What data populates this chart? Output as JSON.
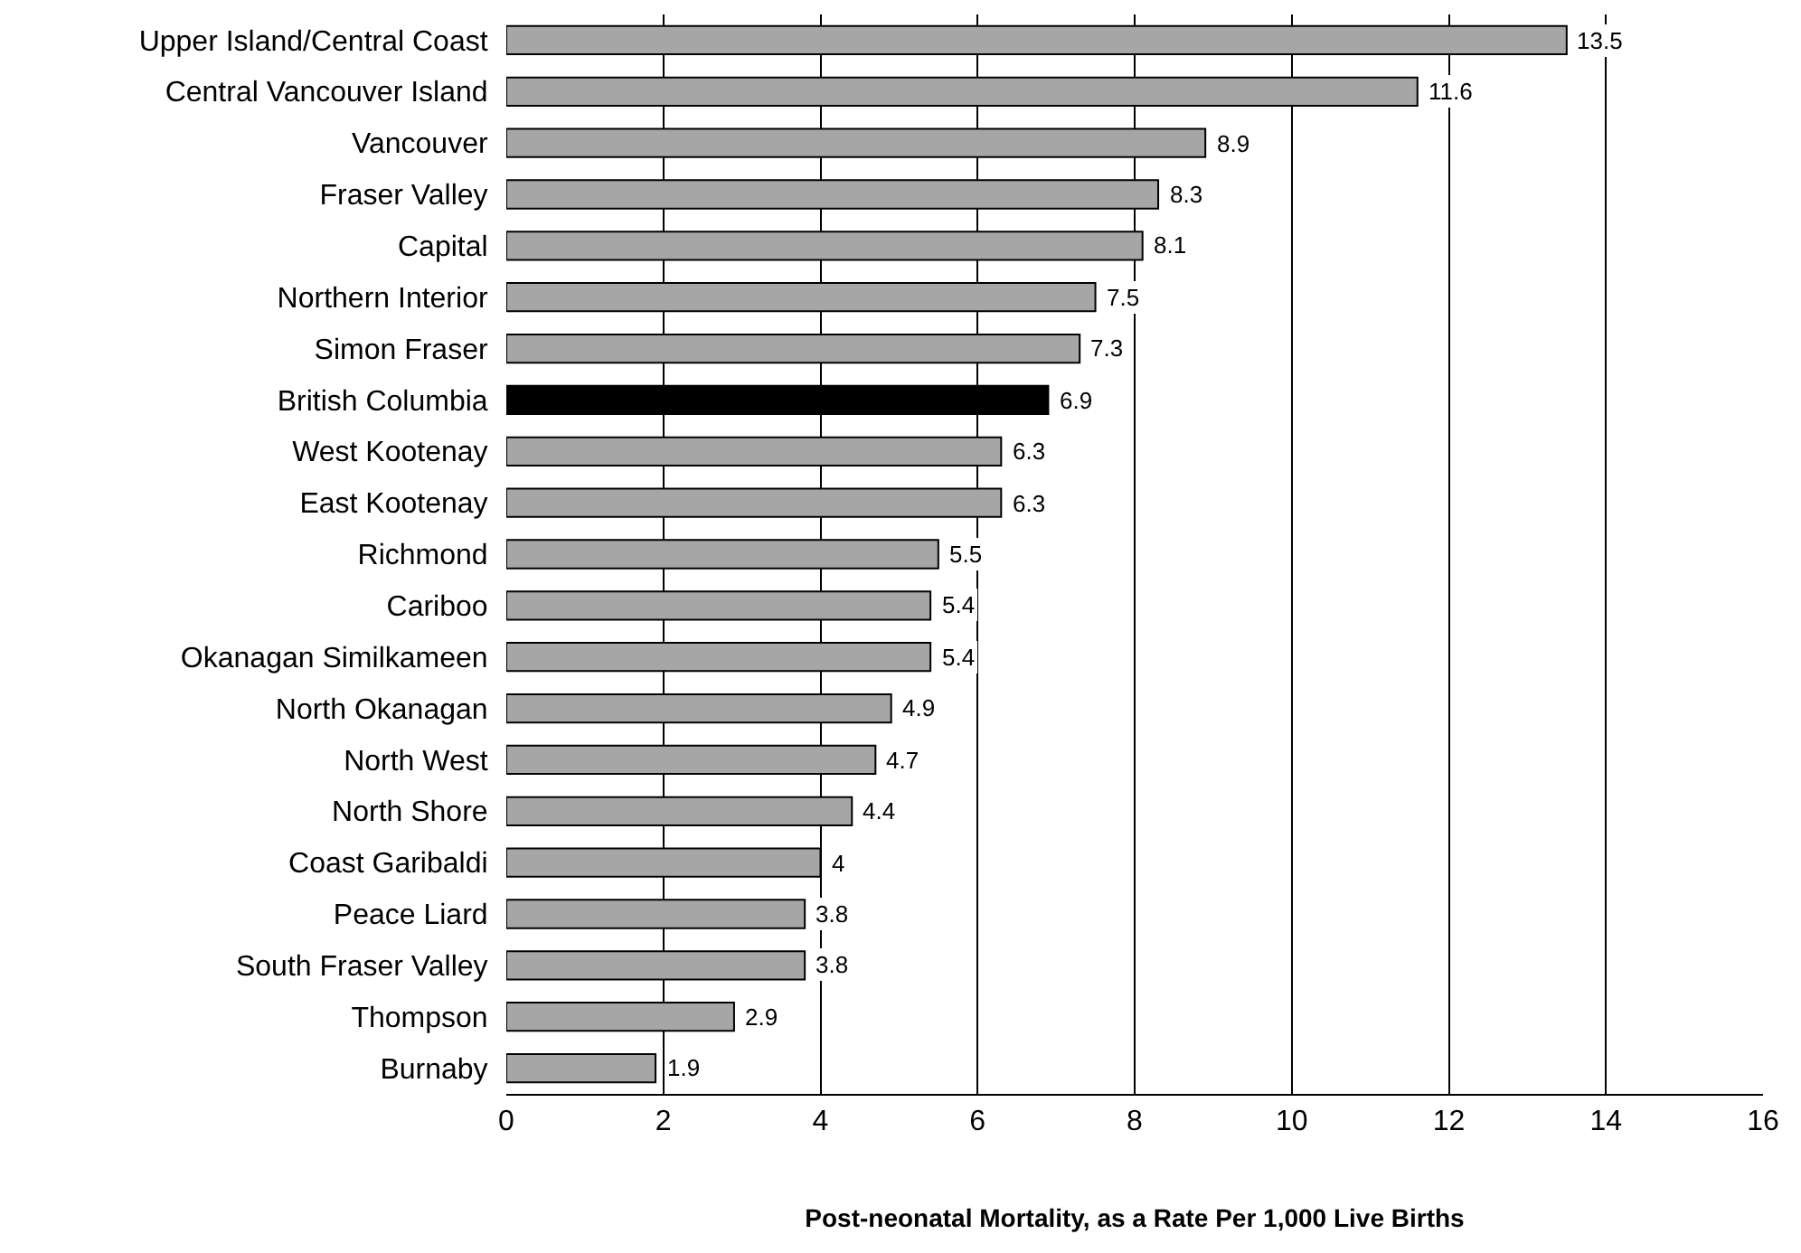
{
  "chart_data": {
    "type": "bar",
    "orientation": "horizontal",
    "xlabel": "Post-neonatal Mortality, as a Rate Per 1,000 Live Births",
    "categories": [
      "Upper Island/Central Coast",
      "Central Vancouver Island",
      "Vancouver",
      "Fraser Valley",
      "Capital",
      "Northern Interior",
      "Simon Fraser",
      "British Columbia",
      "West Kootenay",
      "East Kootenay",
      "Richmond",
      "Cariboo",
      "Okanagan Similkameen",
      "North Okanagan",
      "North West",
      "North Shore",
      "Coast Garibaldi",
      "Peace Liard",
      "South Fraser Valley",
      "Thompson",
      "Burnaby"
    ],
    "values": [
      13.5,
      11.6,
      8.9,
      8.3,
      8.1,
      7.5,
      7.3,
      6.9,
      6.3,
      6.3,
      5.5,
      5.4,
      5.4,
      4.9,
      4.7,
      4.4,
      4,
      3.8,
      3.8,
      2.9,
      1.9
    ],
    "colors": [
      "#a6a6a6",
      "#a6a6a6",
      "#a6a6a6",
      "#a6a6a6",
      "#a6a6a6",
      "#a6a6a6",
      "#a6a6a6",
      "#000000",
      "#a6a6a6",
      "#a6a6a6",
      "#a6a6a6",
      "#a6a6a6",
      "#a6a6a6",
      "#a6a6a6",
      "#a6a6a6",
      "#a6a6a6",
      "#a6a6a6",
      "#a6a6a6",
      "#a6a6a6",
      "#a6a6a6",
      "#a6a6a6"
    ],
    "data_labels": true,
    "xlim": [
      0,
      16
    ],
    "xticks": [
      0,
      2,
      4,
      6,
      8,
      10,
      12,
      14,
      16
    ],
    "grid": "x"
  }
}
